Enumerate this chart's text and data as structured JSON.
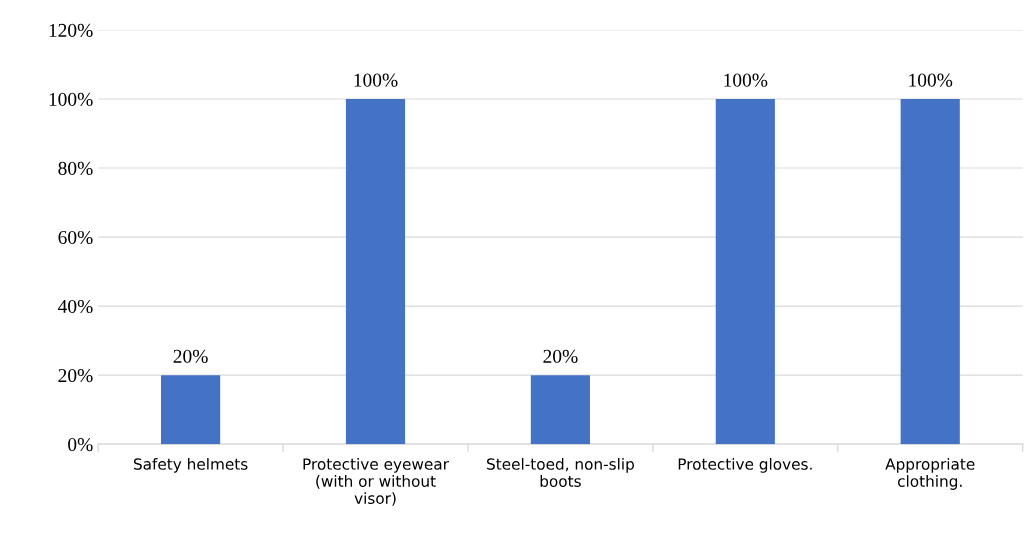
{
  "chart_data": {
    "type": "bar",
    "categories": [
      "Safety helmets",
      "Protective eyewear (with or without visor)",
      "Steel-toed, non-slip boots",
      "Protective gloves.",
      "Appropriate clothing."
    ],
    "values": [
      20,
      100,
      20,
      100,
      100
    ],
    "color": "#4472c4",
    "value_labels": [
      "20%",
      "100%",
      "20%",
      "100%",
      "100%"
    ],
    "ylim": [
      0,
      120
    ],
    "yticks": [
      {
        "value": 0,
        "label": "0%"
      },
      {
        "value": 20,
        "label": "20%"
      },
      {
        "value": 40,
        "label": "40%"
      },
      {
        "value": 60,
        "label": "60%"
      },
      {
        "value": 80,
        "label": "80%"
      },
      {
        "value": 100,
        "label": "100%"
      },
      {
        "value": 120,
        "label": "120%"
      }
    ],
    "grid": "y",
    "legend": false
  }
}
